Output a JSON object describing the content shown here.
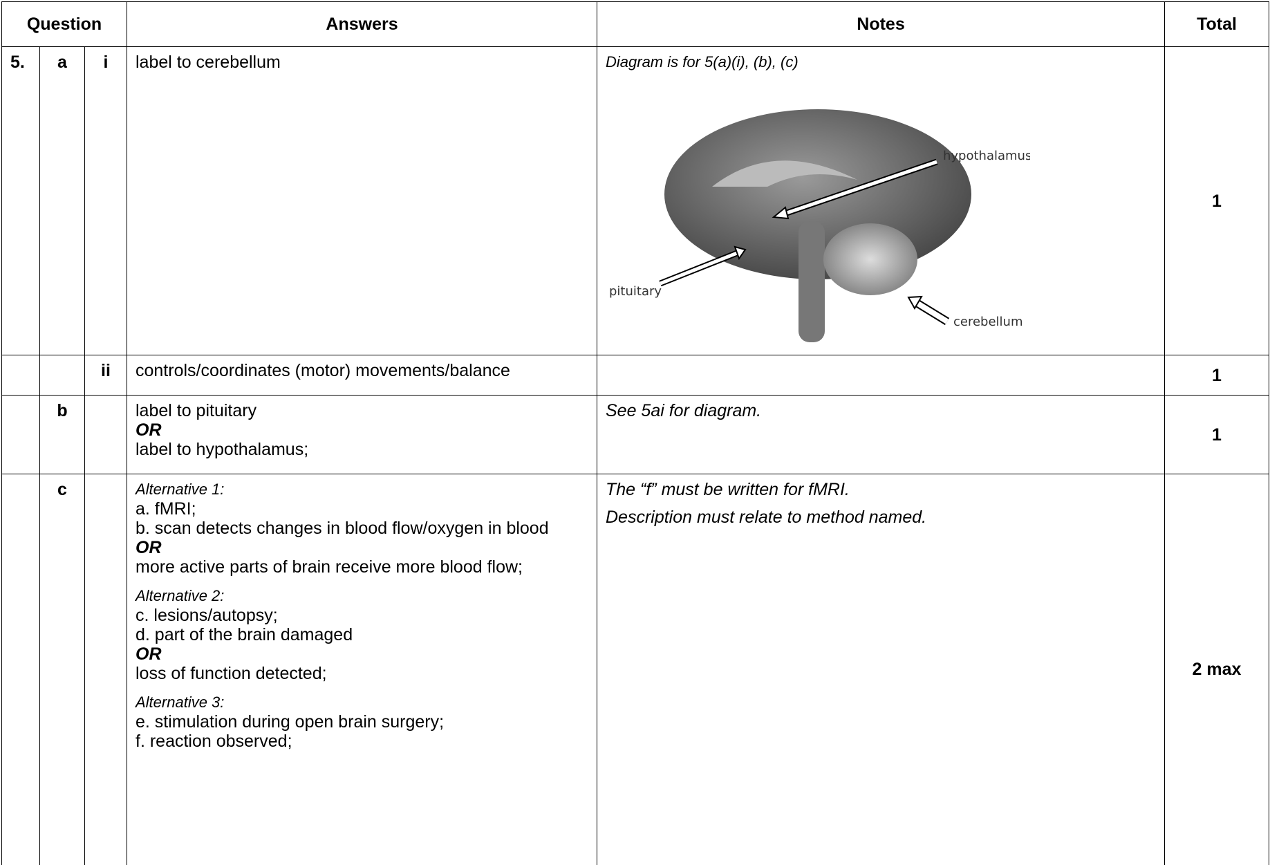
{
  "header": {
    "question": "Question",
    "answers": "Answers",
    "notes": "Notes",
    "total": "Total"
  },
  "rows": [
    {
      "number": "5.",
      "part": "a",
      "sub": "i",
      "answer": [
        "label to cerebellum"
      ],
      "notes": [
        "Diagram is for 5(a)(i), (b), (c)"
      ],
      "total": "1"
    },
    {
      "sub": "ii",
      "answer": [
        "controls/coordinates (motor) movements/balance"
      ],
      "total": "1"
    },
    {
      "part": "b",
      "answer": [
        "label to pituitary",
        "OR",
        "label to hypothalamus;"
      ],
      "notes": [
        "See 5ai for diagram."
      ],
      "total": "1"
    },
    {
      "part": "c",
      "answer": [
        "Alternative 1:",
        "a. fMRI;",
        "b. scan detects changes in blood flow/oxygen in blood",
        "OR",
        "more active parts of brain receive more blood flow;",
        "Alternative 2:",
        "c. lesions/autopsy;",
        "d. part of the brain damaged",
        "OR",
        "loss of function detected;",
        "Alternative 3:",
        "e. stimulation during open brain surgery;",
        "f.  reaction observed;"
      ],
      "notes": [
        "The “f” must be written for fMRI.",
        "Description must relate to method named."
      ],
      "total": "2 max"
    }
  ],
  "diagram": {
    "labels": [
      "hypothalamus",
      "pituitary",
      "cerebellum"
    ]
  }
}
